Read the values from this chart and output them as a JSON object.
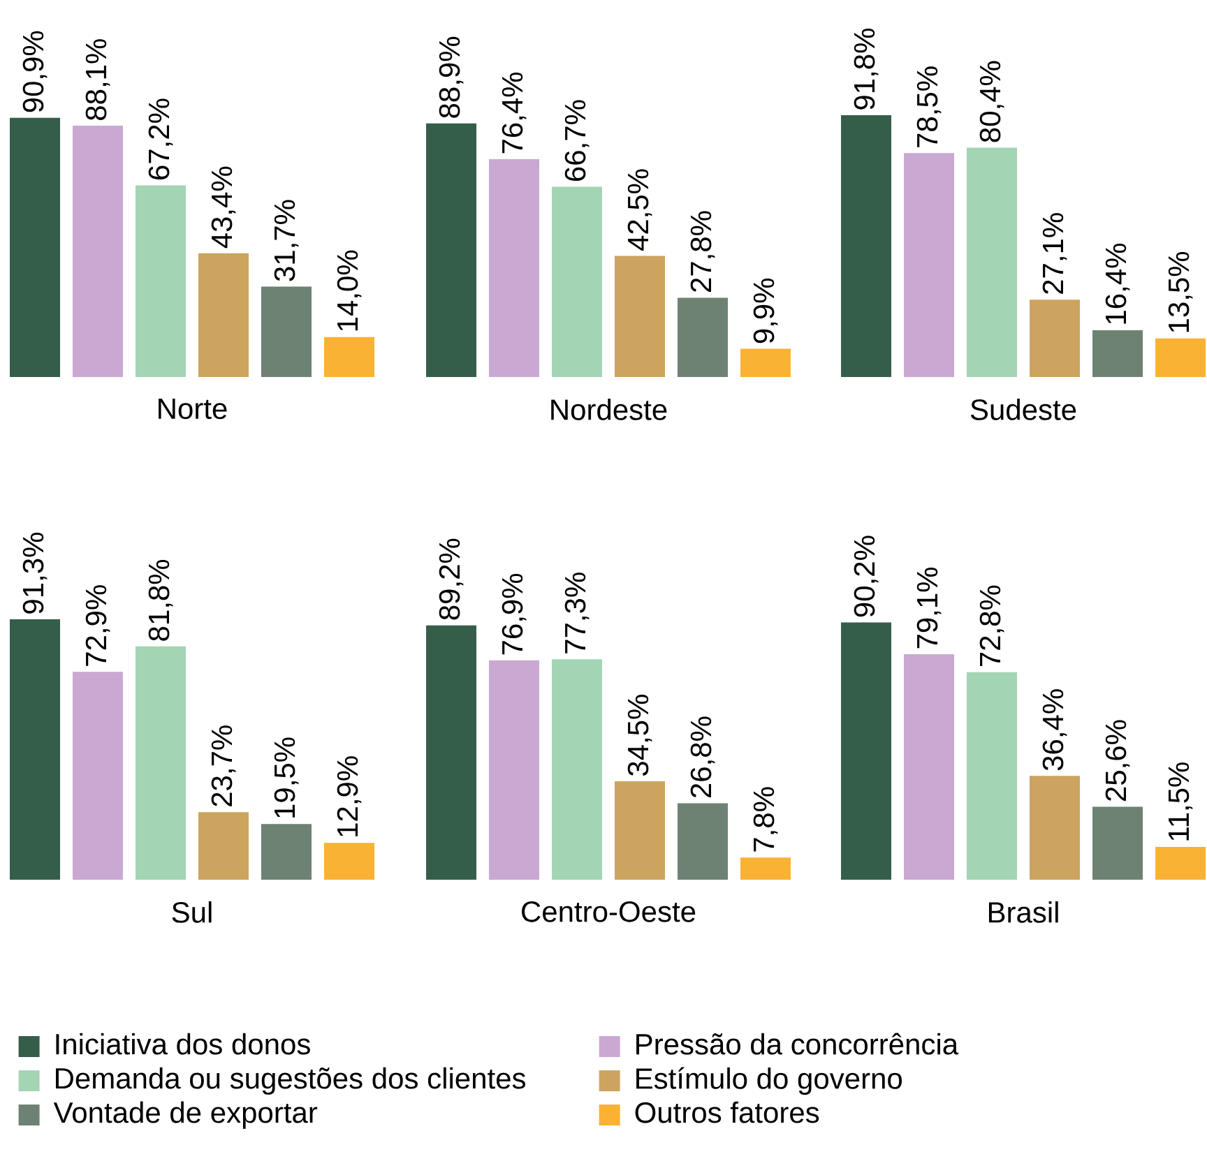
{
  "chart_data": [
    {
      "type": "bar",
      "xlabel": "Norte",
      "categories": [
        null
      ],
      "series": [
        {
          "color": "#355e4a",
          "values": [
            90.9
          ],
          "value_labels": [
            "90,9%"
          ]
        },
        {
          "color": "#c9a8d2",
          "values": [
            88.1
          ],
          "value_labels": [
            "88,1%"
          ]
        },
        {
          "color": "#a3d4b4",
          "values": [
            67.2
          ],
          "value_labels": [
            "67,2%"
          ]
        },
        {
          "color": "#cca45f",
          "values": [
            43.4
          ],
          "value_labels": [
            "43,4%"
          ]
        },
        {
          "color": "#6e8273",
          "values": [
            31.7
          ],
          "value_labels": [
            "31,7%"
          ]
        },
        {
          "color": "#f9b233",
          "values": [
            14.0
          ],
          "value_labels": [
            "14,0%"
          ]
        }
      ]
    },
    {
      "type": "bar",
      "xlabel": "Nordeste",
      "categories": [
        null
      ],
      "series": [
        {
          "color": "#355e4a",
          "values": [
            88.9
          ],
          "value_labels": [
            "88,9%"
          ]
        },
        {
          "color": "#c9a8d2",
          "values": [
            76.4
          ],
          "value_labels": [
            "76,4%"
          ]
        },
        {
          "color": "#a3d4b4",
          "values": [
            66.7
          ],
          "value_labels": [
            "66,7%"
          ]
        },
        {
          "color": "#cca45f",
          "values": [
            42.5
          ],
          "value_labels": [
            "42,5%"
          ]
        },
        {
          "color": "#6e8273",
          "values": [
            27.8
          ],
          "value_labels": [
            "27,8%"
          ]
        },
        {
          "color": "#f9b233",
          "values": [
            9.9
          ],
          "value_labels": [
            "9,9%"
          ]
        }
      ]
    },
    {
      "type": "bar",
      "xlabel": "Sudeste",
      "categories": [
        null
      ],
      "series": [
        {
          "color": "#355e4a",
          "values": [
            91.8
          ],
          "value_labels": [
            "91,8%"
          ]
        },
        {
          "color": "#c9a8d2",
          "values": [
            78.5
          ],
          "value_labels": [
            "78,5%"
          ]
        },
        {
          "color": "#a3d4b4",
          "values": [
            80.4
          ],
          "value_labels": [
            "80,4%"
          ]
        },
        {
          "color": "#cca45f",
          "values": [
            27.1
          ],
          "value_labels": [
            "27,1%"
          ]
        },
        {
          "color": "#6e8273",
          "values": [
            16.4
          ],
          "value_labels": [
            "16,4%"
          ]
        },
        {
          "color": "#f9b233",
          "values": [
            13.5
          ],
          "value_labels": [
            "13,5%"
          ]
        }
      ]
    },
    {
      "type": "bar",
      "xlabel": "Sul",
      "categories": [
        null
      ],
      "series": [
        {
          "color": "#355e4a",
          "values": [
            91.3
          ],
          "value_labels": [
            "91,3%"
          ]
        },
        {
          "color": "#c9a8d2",
          "values": [
            72.9
          ],
          "value_labels": [
            "72,9%"
          ]
        },
        {
          "color": "#a3d4b4",
          "values": [
            81.8
          ],
          "value_labels": [
            "81,8%"
          ]
        },
        {
          "color": "#cca45f",
          "values": [
            23.7
          ],
          "value_labels": [
            "23,7%"
          ]
        },
        {
          "color": "#6e8273",
          "values": [
            19.5
          ],
          "value_labels": [
            "19,5%"
          ]
        },
        {
          "color": "#f9b233",
          "values": [
            12.9
          ],
          "value_labels": [
            "12,9%"
          ]
        }
      ]
    },
    {
      "type": "bar",
      "xlabel": "Centro-Oeste",
      "categories": [
        null
      ],
      "series": [
        {
          "color": "#355e4a",
          "values": [
            89.2
          ],
          "value_labels": [
            "89,2%"
          ]
        },
        {
          "color": "#c9a8d2",
          "values": [
            76.9
          ],
          "value_labels": [
            "76,9%"
          ]
        },
        {
          "color": "#a3d4b4",
          "values": [
            77.3
          ],
          "value_labels": [
            "77,3%"
          ]
        },
        {
          "color": "#cca45f",
          "values": [
            34.5
          ],
          "value_labels": [
            "34,5%"
          ]
        },
        {
          "color": "#6e8273",
          "values": [
            26.8
          ],
          "value_labels": [
            "26,8%"
          ]
        },
        {
          "color": "#f9b233",
          "values": [
            7.8
          ],
          "value_labels": [
            "7,8%"
          ]
        }
      ]
    },
    {
      "type": "bar",
      "xlabel": "Brasil",
      "categories": [
        null
      ],
      "legend": "bottom",
      "series": [
        {
          "name": "Iniciativa dos donos",
          "color": "#355e4a",
          "values": [
            90.2
          ],
          "value_labels": [
            "90,2%"
          ]
        },
        {
          "name": "Pressão da concorrência",
          "color": "#c9a8d2",
          "values": [
            79.1
          ],
          "value_labels": [
            "79,1%"
          ]
        },
        {
          "name": "Demanda ou sugestões dos clientes",
          "color": "#a3d4b4",
          "values": [
            72.8
          ],
          "value_labels": [
            "72,8%"
          ]
        },
        {
          "name": "Estímulo do governo",
          "color": "#cca45f",
          "values": [
            36.4
          ],
          "value_labels": [
            "36,4%"
          ]
        },
        {
          "name": "Vontade de exportar",
          "color": "#6e8273",
          "values": [
            25.6
          ],
          "value_labels": [
            "25,6%"
          ]
        },
        {
          "name": "Outros fatores",
          "color": "#f9b233",
          "values": [
            11.5
          ],
          "value_labels": [
            "11,5%"
          ]
        }
      ]
    }
  ]
}
